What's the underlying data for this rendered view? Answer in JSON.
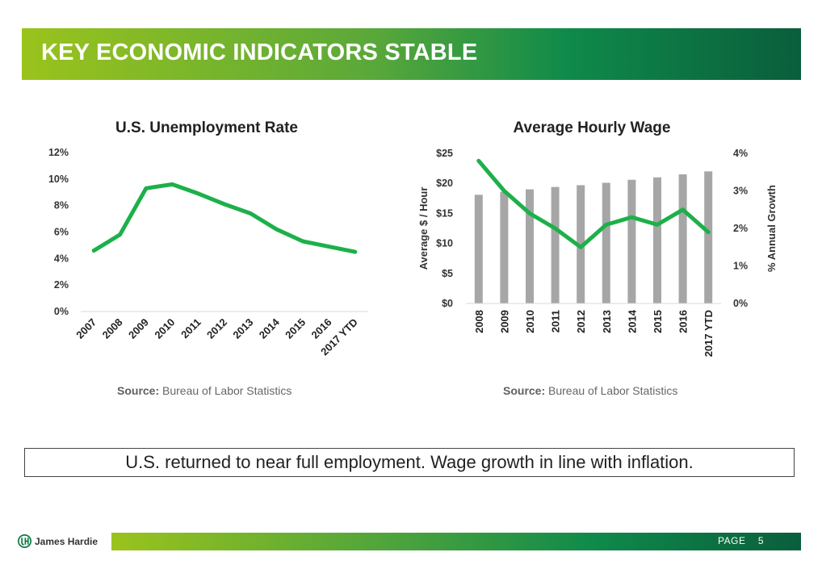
{
  "header": {
    "title": "KEY ECONOMIC INDICATORS STABLE"
  },
  "chart_data": [
    {
      "type": "line",
      "title": "U.S. Unemployment Rate",
      "categories": [
        "2007",
        "2008",
        "2009",
        "2010",
        "2011",
        "2012",
        "2013",
        "2014",
        "2015",
        "2016",
        "2017 YTD"
      ],
      "values": [
        4.6,
        5.8,
        9.3,
        9.6,
        8.9,
        8.1,
        7.4,
        6.2,
        5.3,
        4.9,
        4.5
      ],
      "y_ticks": [
        "0%",
        "2%",
        "4%",
        "6%",
        "8%",
        "10%",
        "12%"
      ],
      "ylim": [
        0,
        12
      ],
      "series_color": "#1db04a",
      "source_label": "Source:",
      "source_text": "Bureau of Labor Statistics"
    },
    {
      "type": "bar",
      "title": "Average Hourly Wage",
      "categories": [
        "2008",
        "2009",
        "2010",
        "2011",
        "2012",
        "2013",
        "2014",
        "2015",
        "2016",
        "2017 YTD"
      ],
      "series": [
        {
          "name": "Average $ / Hour",
          "type": "bar",
          "axis": "left",
          "color": "#a6a6a6",
          "values": [
            18.1,
            18.6,
            19.0,
            19.4,
            19.7,
            20.1,
            20.6,
            21.0,
            21.5,
            22.0
          ]
        },
        {
          "name": "% Annual Growth",
          "type": "line",
          "axis": "right",
          "color": "#1db04a",
          "values": [
            3.8,
            3.0,
            2.4,
            2.0,
            1.5,
            2.1,
            2.3,
            2.1,
            2.5,
            1.9
          ]
        }
      ],
      "ylabel": "Average $ / Hour",
      "y2label": "% Annual Growth",
      "y_ticks": [
        "$0",
        "$5",
        "$10",
        "$15",
        "$20",
        "$25"
      ],
      "y2_ticks": [
        "0%",
        "1%",
        "2%",
        "3%",
        "4%"
      ],
      "ylim": [
        0,
        25
      ],
      "y2lim": [
        0,
        4
      ],
      "source_label": "Source:",
      "source_text": "Bureau of Labor Statistics"
    }
  ],
  "note": "U.S. returned to near full employment. Wage growth in line with inflation.",
  "footer": {
    "logo_text": "James Hardie",
    "page_label": "PAGE",
    "page_number": "5"
  }
}
